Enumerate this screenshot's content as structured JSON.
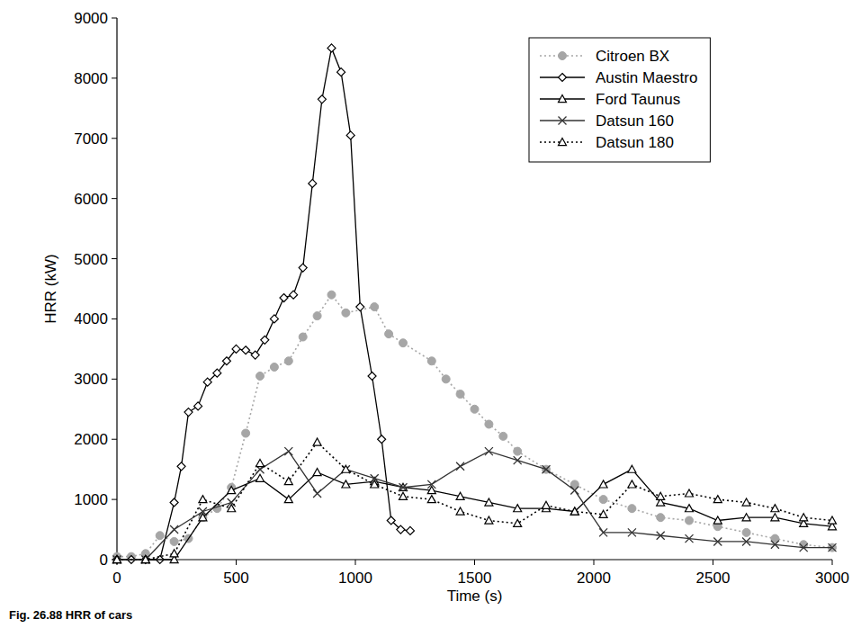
{
  "chart_data": {
    "type": "line",
    "caption": "Fig. 26.88  HRR of cars",
    "x_label": "Time (s)",
    "y_label": "HRR (kW)",
    "xlim": [
      0,
      3000
    ],
    "xticks": [
      0,
      500,
      1000,
      1500,
      2000,
      2500,
      3000
    ],
    "ylim": [
      0,
      9000
    ],
    "yticks": [
      0,
      1000,
      2000,
      3000,
      4000,
      5000,
      6000,
      7000,
      8000,
      9000
    ],
    "grid": false,
    "legend": "upper right",
    "series": [
      {
        "name": "Citroen BX",
        "color": "#a6a6a6",
        "marker": "circle",
        "line_style": "dotted",
        "x": [
          0,
          60,
          120,
          180,
          240,
          300,
          360,
          420,
          480,
          540,
          600,
          660,
          720,
          780,
          840,
          900,
          960,
          1080,
          1140,
          1200,
          1320,
          1380,
          1440,
          1500,
          1560,
          1620,
          1680,
          1800,
          1920,
          2040,
          2160,
          2280,
          2400,
          2520,
          2640,
          2760,
          2880,
          3000
        ],
        "values": [
          50,
          50,
          100,
          400,
          300,
          350,
          700,
          850,
          1200,
          2100,
          3050,
          3200,
          3300,
          3700,
          4050,
          4400,
          4100,
          4200,
          3750,
          3600,
          3300,
          3000,
          2750,
          2500,
          2250,
          2050,
          1800,
          1500,
          1250,
          1000,
          850,
          700,
          650,
          550,
          450,
          350,
          250,
          200
        ]
      },
      {
        "name": "Austin Maestro",
        "color": "#000000",
        "marker": "diamond",
        "line_style": "solid",
        "x": [
          0,
          60,
          120,
          180,
          240,
          270,
          300,
          340,
          380,
          420,
          460,
          500,
          540,
          580,
          620,
          660,
          700,
          740,
          780,
          820,
          860,
          900,
          940,
          980,
          1020,
          1070,
          1110,
          1150,
          1190,
          1230
        ],
        "values": [
          0,
          0,
          0,
          0,
          950,
          1550,
          2450,
          2550,
          2950,
          3100,
          3300,
          3500,
          3480,
          3400,
          3650,
          4000,
          4350,
          4400,
          4850,
          6250,
          7650,
          8500,
          8100,
          7050,
          4200,
          3050,
          2000,
          650,
          500,
          480
        ]
      },
      {
        "name": "Ford Taunus",
        "color": "#000000",
        "marker": "triangle",
        "line_style": "solid",
        "x": [
          0,
          120,
          240,
          360,
          480,
          600,
          720,
          840,
          960,
          1080,
          1200,
          1320,
          1440,
          1560,
          1680,
          1800,
          1920,
          2040,
          2160,
          2280,
          2400,
          2520,
          2640,
          2760,
          2880,
          3000
        ],
        "values": [
          0,
          0,
          0,
          700,
          1150,
          1350,
          1000,
          1450,
          1250,
          1300,
          1200,
          1150,
          1050,
          950,
          850,
          850,
          800,
          1250,
          1500,
          950,
          850,
          650,
          700,
          700,
          600,
          550
        ]
      },
      {
        "name": "Datsun 160",
        "color": "#333333",
        "marker": "x",
        "line_style": "solid",
        "x": [
          0,
          120,
          240,
          360,
          480,
          600,
          720,
          840,
          960,
          1080,
          1200,
          1320,
          1440,
          1560,
          1680,
          1800,
          1920,
          2040,
          2160,
          2280,
          2400,
          2520,
          2640,
          2760,
          2880,
          3000
        ],
        "values": [
          0,
          0,
          500,
          800,
          950,
          1500,
          1800,
          1100,
          1500,
          1350,
          1200,
          1250,
          1550,
          1800,
          1650,
          1500,
          1150,
          450,
          450,
          400,
          350,
          300,
          300,
          250,
          200,
          200
        ]
      },
      {
        "name": "Datsun 180",
        "color": "#000000",
        "marker": "triangle",
        "line_style": "dotted",
        "x": [
          0,
          120,
          240,
          360,
          480,
          600,
          720,
          840,
          960,
          1080,
          1200,
          1320,
          1440,
          1560,
          1680,
          1800,
          1920,
          2040,
          2160,
          2280,
          2400,
          2520,
          2640,
          2760,
          2880,
          3000
        ],
        "values": [
          0,
          0,
          100,
          1000,
          850,
          1600,
          1300,
          1950,
          1500,
          1250,
          1050,
          1000,
          800,
          650,
          600,
          900,
          800,
          750,
          1250,
          1050,
          1100,
          1000,
          950,
          850,
          700,
          650
        ]
      }
    ]
  }
}
